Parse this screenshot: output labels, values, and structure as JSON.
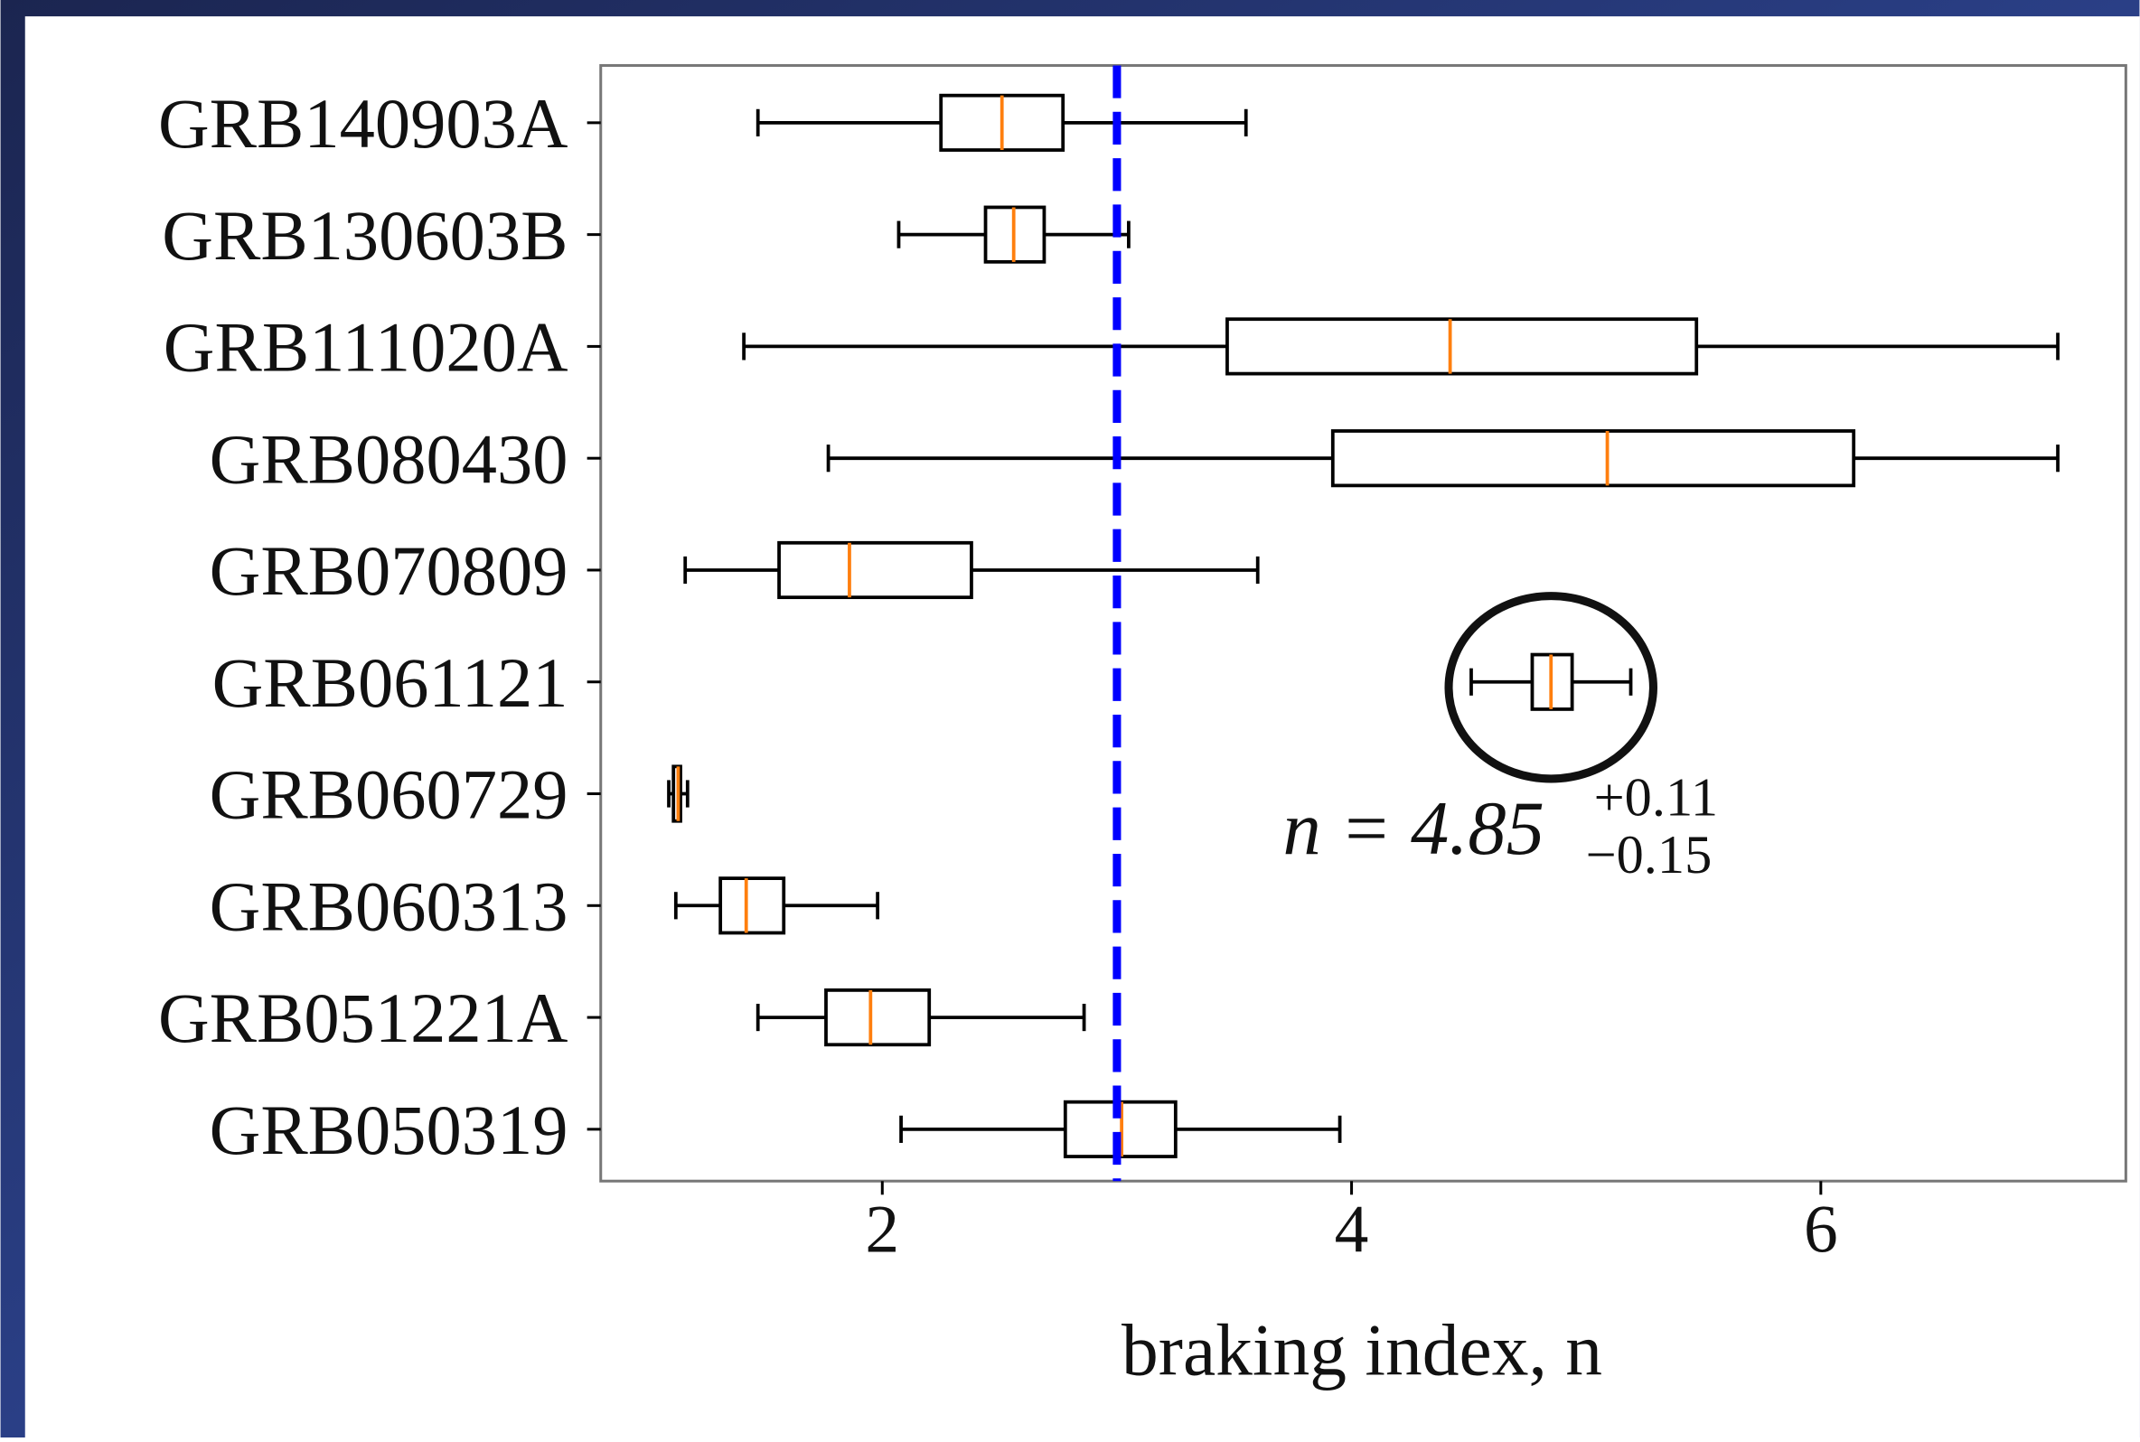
{
  "chart_data": {
    "type": "boxplot",
    "xlabel": "braking index, n",
    "categories": [
      "GRB140903A",
      "GRB130603B",
      "GRB111020A",
      "GRB080430",
      "GRB070809",
      "GRB061121",
      "GRB060729",
      "GRB060313",
      "GRB051221A",
      "GRB050319"
    ],
    "boxes": [
      {
        "low": 1.47,
        "q1": 2.25,
        "median": 2.51,
        "q3": 2.77,
        "high": 3.55
      },
      {
        "low": 2.07,
        "q1": 2.44,
        "median": 2.56,
        "q3": 2.69,
        "high": 3.05
      },
      {
        "low": 1.41,
        "q1": 3.47,
        "median": 4.42,
        "q3": 5.47,
        "high": 7.01
      },
      {
        "low": 1.77,
        "q1": 3.92,
        "median": 5.09,
        "q3": 6.14,
        "high": 7.01
      },
      {
        "low": 1.16,
        "q1": 1.56,
        "median": 1.86,
        "q3": 2.38,
        "high": 3.6
      },
      {
        "low": 4.51,
        "q1": 4.77,
        "median": 4.85,
        "q3": 4.94,
        "high": 5.19
      },
      {
        "low": 1.09,
        "q1": 1.11,
        "median": 1.13,
        "q3": 1.14,
        "high": 1.17
      },
      {
        "low": 1.12,
        "q1": 1.31,
        "median": 1.42,
        "q3": 1.58,
        "high": 1.98
      },
      {
        "low": 1.47,
        "q1": 1.76,
        "median": 1.95,
        "q3": 2.2,
        "high": 2.86
      },
      {
        "low": 2.08,
        "q1": 2.78,
        "median": 3.02,
        "q3": 3.25,
        "high": 3.95
      }
    ],
    "box_color": "#000000",
    "median_color": "#ff7f0e",
    "xlim": [
      0.8,
      7.3
    ],
    "xticks": [
      2,
      4,
      6
    ],
    "reference_line": {
      "value": 3,
      "color": "#0000ff"
    },
    "annotation": {
      "text": "n = 4.85",
      "upper": "+0.11",
      "lower": "−0.15",
      "highlight": "GRB061121"
    }
  }
}
